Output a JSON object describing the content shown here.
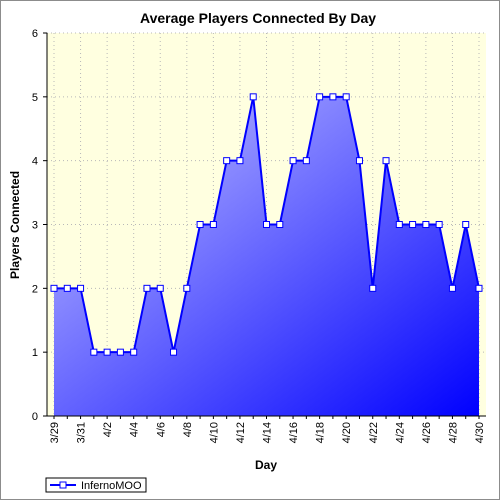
{
  "chart_data": {
    "type": "area",
    "title": "Average Players Connected By Day",
    "xlabel": "Day",
    "ylabel": "Players Connected",
    "ylim": [
      0,
      6
    ],
    "yticks": [
      0,
      1,
      2,
      3,
      4,
      5,
      6
    ],
    "x": [
      "3/29",
      "3/30",
      "3/31",
      "4/1",
      "4/2",
      "4/3",
      "4/4",
      "4/5",
      "4/6",
      "4/7",
      "4/8",
      "4/9",
      "4/10",
      "4/11",
      "4/12",
      "4/13",
      "4/14",
      "4/15",
      "4/16",
      "4/17",
      "4/18",
      "4/19",
      "4/20",
      "4/21",
      "4/22",
      "4/23",
      "4/24",
      "4/25",
      "4/26",
      "4/27",
      "4/28",
      "4/29",
      "4/30"
    ],
    "xtick_labels": [
      "3/29",
      "3/31",
      "4/2",
      "4/4",
      "4/6",
      "4/8",
      "4/10",
      "4/12",
      "4/14",
      "4/16",
      "4/18",
      "4/20",
      "4/22",
      "4/24",
      "4/26",
      "4/28",
      "4/30"
    ],
    "series": [
      {
        "name": "InfernoMOO",
        "values": [
          2,
          2,
          2,
          1,
          1,
          1,
          1,
          2,
          2,
          1,
          2,
          3,
          3,
          4,
          4,
          5,
          3,
          3,
          4,
          4,
          5,
          5,
          5,
          4,
          2,
          4,
          3,
          3,
          3,
          3,
          2,
          3,
          2
        ]
      }
    ],
    "grid": true,
    "legend_position": "bottom-left",
    "colors": {
      "plot_background": "#ffffe0",
      "line": "#0000ff",
      "fill_top": "#c8c8ff",
      "fill_bottom": "#0000ff",
      "marker_fill": "#ffffff",
      "grid": "#b8b8b8"
    }
  }
}
